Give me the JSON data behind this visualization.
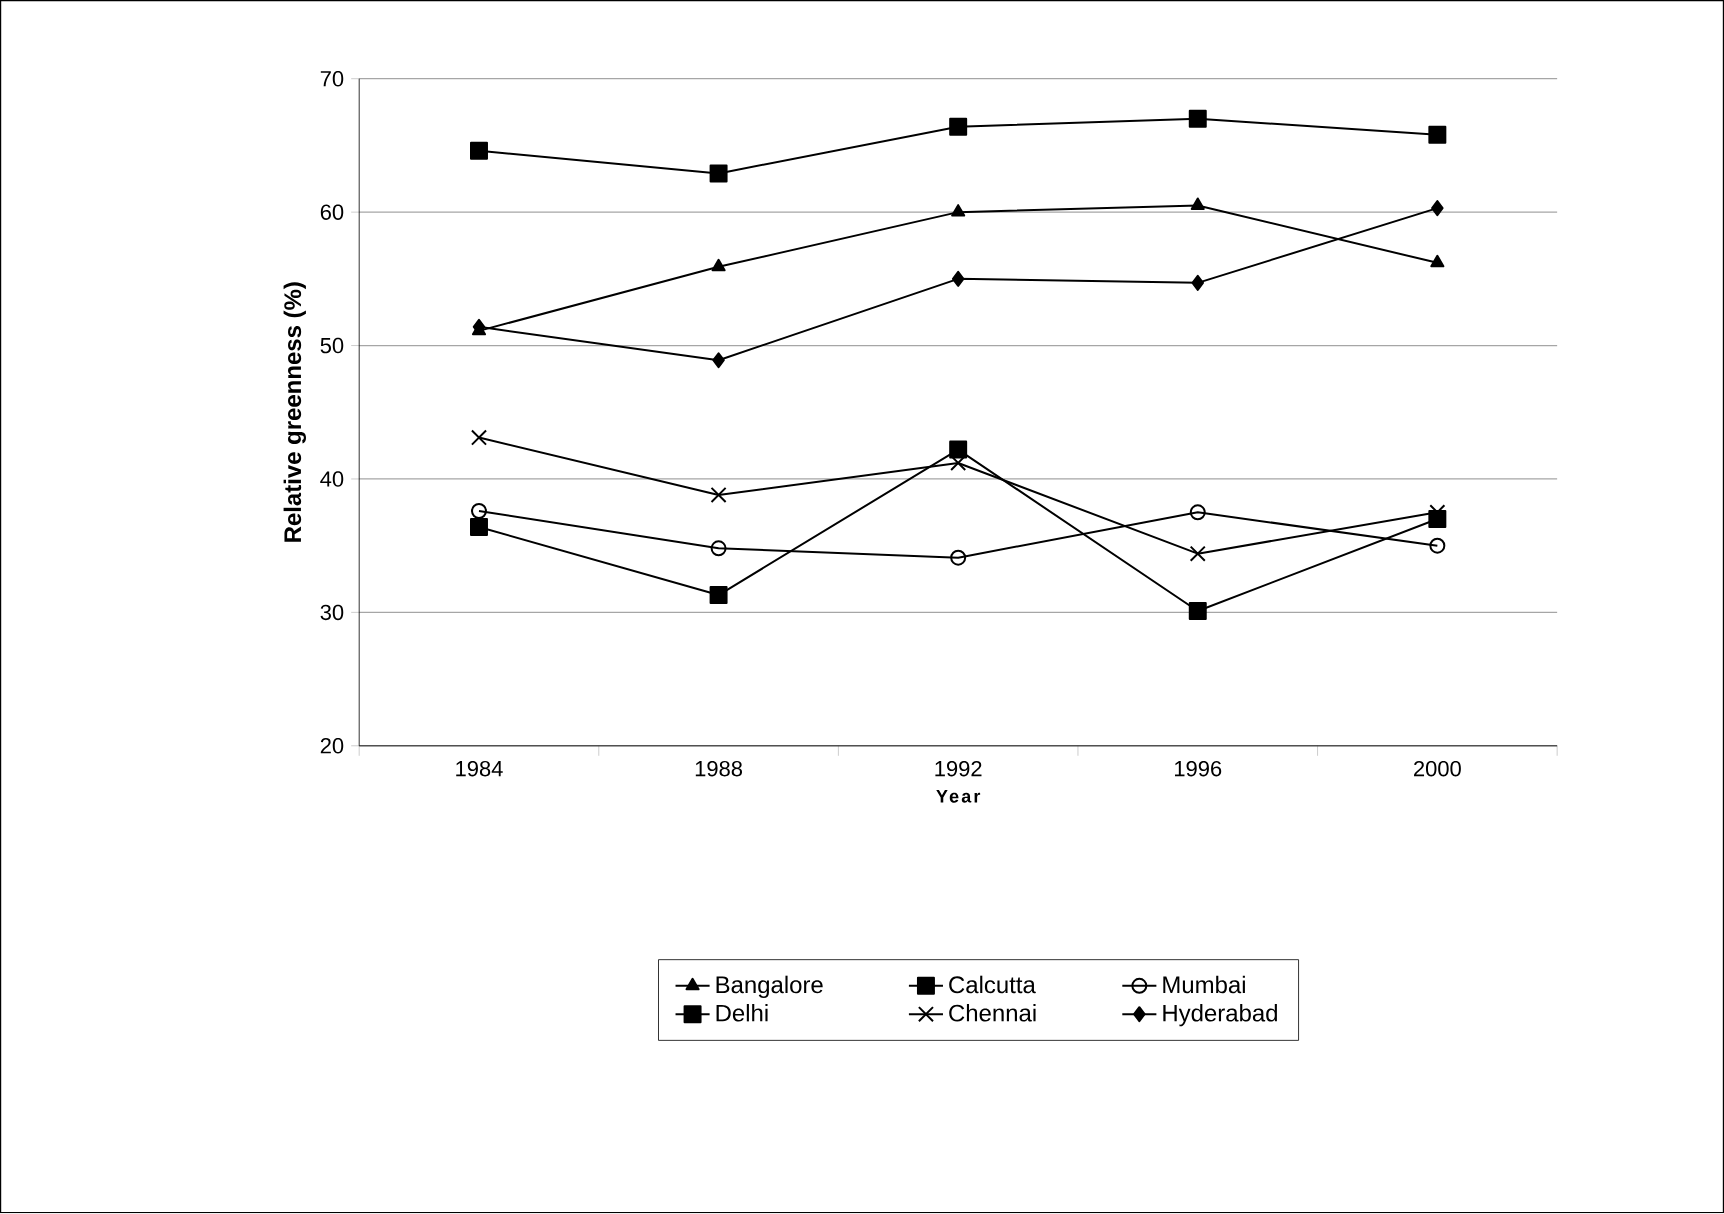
{
  "chart_data": {
    "type": "line",
    "xlabel": "Year",
    "ylabel": "Relative greenness (%)",
    "categories": [
      "1984",
      "1988",
      "1992",
      "1996",
      "2000"
    ],
    "ylim": [
      20,
      70
    ],
    "yticks": [
      20,
      30,
      40,
      50,
      60,
      70
    ],
    "grid": "y",
    "legend": "bottom",
    "series": [
      {
        "name": "Bangalore",
        "color": "#000000",
        "marker": "triangle",
        "values": [
          51.1,
          55.9,
          60.0,
          60.5,
          56.2
        ]
      },
      {
        "name": "Calcutta",
        "color": "#000000",
        "marker": "square",
        "values": [
          36.4,
          31.3,
          42.2,
          30.1,
          37.0
        ]
      },
      {
        "name": "Mumbai",
        "color": "#000000",
        "marker": "circle",
        "values": [
          37.6,
          34.8,
          34.1,
          37.5,
          35.0
        ]
      },
      {
        "name": "Delhi",
        "color": "#000000",
        "marker": "square",
        "values": [
          64.6,
          62.9,
          66.4,
          67.0,
          65.8
        ]
      },
      {
        "name": "Chennai",
        "color": "#000000",
        "marker": "cross",
        "values": [
          43.1,
          38.8,
          41.2,
          34.4,
          37.5
        ]
      },
      {
        "name": "Hyderabad",
        "color": "#000000",
        "marker": "diamond",
        "values": [
          51.4,
          48.9,
          55.0,
          54.7,
          60.3
        ]
      }
    ]
  }
}
